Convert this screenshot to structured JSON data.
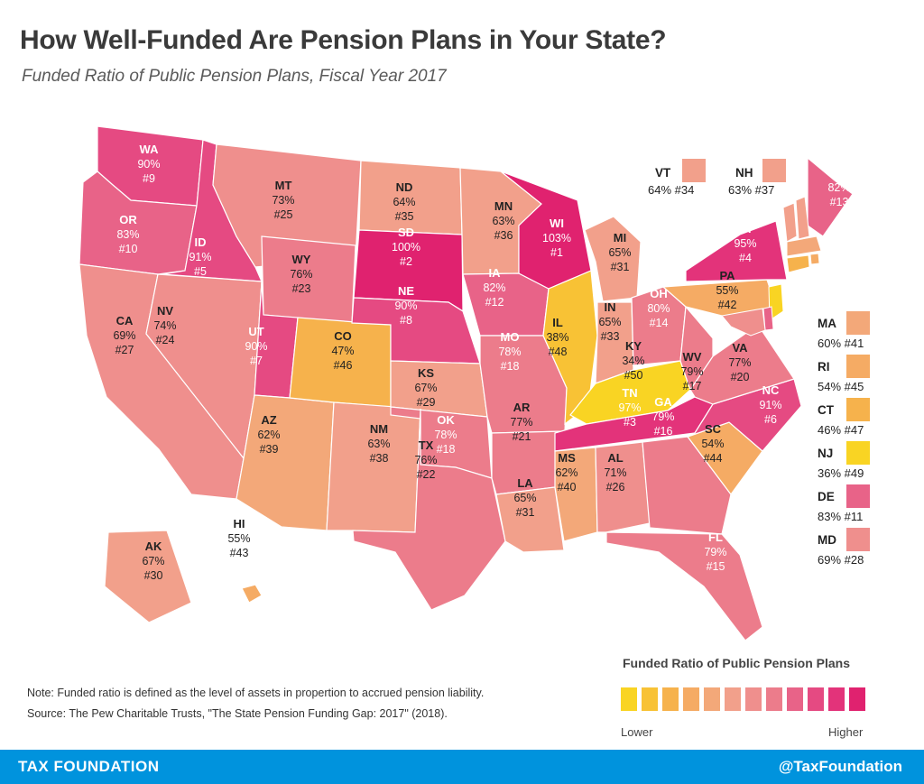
{
  "title": "How Well-Funded Are Pension Plans in Your State?",
  "subtitle": "Funded Ratio of Public Pension Plans, Fiscal Year 2017",
  "colors": {
    "ramp": [
      "#f9d423",
      "#f8c235",
      "#f6b24c",
      "#f5ab64",
      "#f3a879",
      "#f2a08b",
      "#ef8f8d",
      "#ec7c8b",
      "#e86388",
      "#e54a82",
      "#e3337a",
      "#e0226f"
    ],
    "footer": "#0093dd"
  },
  "states": [
    {
      "abbr": "WA",
      "ratio": "90%",
      "rank": "#9"
    },
    {
      "abbr": "OR",
      "ratio": "83%",
      "rank": "#10"
    },
    {
      "abbr": "CA",
      "ratio": "69%",
      "rank": "#27"
    },
    {
      "abbr": "ID",
      "ratio": "91%",
      "rank": "#5"
    },
    {
      "abbr": "NV",
      "ratio": "74%",
      "rank": "#24"
    },
    {
      "abbr": "MT",
      "ratio": "73%",
      "rank": "#25"
    },
    {
      "abbr": "WY",
      "ratio": "76%",
      "rank": "#23"
    },
    {
      "abbr": "UT",
      "ratio": "90%",
      "rank": "#7"
    },
    {
      "abbr": "AZ",
      "ratio": "62%",
      "rank": "#39"
    },
    {
      "abbr": "CO",
      "ratio": "47%",
      "rank": "#46"
    },
    {
      "abbr": "NM",
      "ratio": "63%",
      "rank": "#38"
    },
    {
      "abbr": "ND",
      "ratio": "64%",
      "rank": "#35"
    },
    {
      "abbr": "SD",
      "ratio": "100%",
      "rank": "#2"
    },
    {
      "abbr": "NE",
      "ratio": "90%",
      "rank": "#8"
    },
    {
      "abbr": "KS",
      "ratio": "67%",
      "rank": "#29"
    },
    {
      "abbr": "OK",
      "ratio": "78%",
      "rank": "#18"
    },
    {
      "abbr": "TX",
      "ratio": "76%",
      "rank": "#22"
    },
    {
      "abbr": "MN",
      "ratio": "63%",
      "rank": "#36"
    },
    {
      "abbr": "IA",
      "ratio": "82%",
      "rank": "#12"
    },
    {
      "abbr": "MO",
      "ratio": "78%",
      "rank": "#18"
    },
    {
      "abbr": "AR",
      "ratio": "77%",
      "rank": "#21"
    },
    {
      "abbr": "LA",
      "ratio": "65%",
      "rank": "#31"
    },
    {
      "abbr": "WI",
      "ratio": "103%",
      "rank": "#1"
    },
    {
      "abbr": "IL",
      "ratio": "38%",
      "rank": "#48"
    },
    {
      "abbr": "MI",
      "ratio": "65%",
      "rank": "#31"
    },
    {
      "abbr": "IN",
      "ratio": "65%",
      "rank": "#33"
    },
    {
      "abbr": "OH",
      "ratio": "80%",
      "rank": "#14"
    },
    {
      "abbr": "KY",
      "ratio": "34%",
      "rank": "#50"
    },
    {
      "abbr": "TN",
      "ratio": "97%",
      "rank": "#3"
    },
    {
      "abbr": "MS",
      "ratio": "62%",
      "rank": "#40"
    },
    {
      "abbr": "AL",
      "ratio": "71%",
      "rank": "#26"
    },
    {
      "abbr": "GA",
      "ratio": "79%",
      "rank": "#16"
    },
    {
      "abbr": "FL",
      "ratio": "79%",
      "rank": "#15"
    },
    {
      "abbr": "SC",
      "ratio": "54%",
      "rank": "#44"
    },
    {
      "abbr": "NC",
      "ratio": "91%",
      "rank": "#6"
    },
    {
      "abbr": "VA",
      "ratio": "77%",
      "rank": "#20"
    },
    {
      "abbr": "WV",
      "ratio": "79%",
      "rank": "#17"
    },
    {
      "abbr": "PA",
      "ratio": "55%",
      "rank": "#42"
    },
    {
      "abbr": "NY",
      "ratio": "95%",
      "rank": "#4"
    },
    {
      "abbr": "ME",
      "ratio": "82%",
      "rank": "#13"
    },
    {
      "abbr": "AK",
      "ratio": "67%",
      "rank": "#30"
    },
    {
      "abbr": "HI",
      "ratio": "55%",
      "rank": "#43"
    }
  ],
  "small_states_top": [
    {
      "abbr": "VT",
      "ratio": "64%",
      "rank": "#34"
    },
    {
      "abbr": "NH",
      "ratio": "63%",
      "rank": "#37"
    }
  ],
  "small_states_side": [
    {
      "abbr": "MA",
      "ratio": "60%",
      "rank": "#41"
    },
    {
      "abbr": "RI",
      "ratio": "54%",
      "rank": "#45"
    },
    {
      "abbr": "CT",
      "ratio": "46%",
      "rank": "#47"
    },
    {
      "abbr": "NJ",
      "ratio": "36%",
      "rank": "#49"
    },
    {
      "abbr": "DE",
      "ratio": "83%",
      "rank": "#11"
    },
    {
      "abbr": "MD",
      "ratio": "69%",
      "rank": "#28"
    }
  ],
  "note": "Note: Funded ratio is defined as the level of assets in propertion to accrued pension liability.",
  "source": "Source: The Pew Charitable Trusts, \"The State Pension Funding Gap: 2017\" (2018).",
  "legend": {
    "title": "Funded Ratio of Public Pension Plans",
    "low": "Lower",
    "high": "Higher"
  },
  "footer": {
    "left": "TAX FOUNDATION",
    "right": "@TaxFoundation"
  }
}
